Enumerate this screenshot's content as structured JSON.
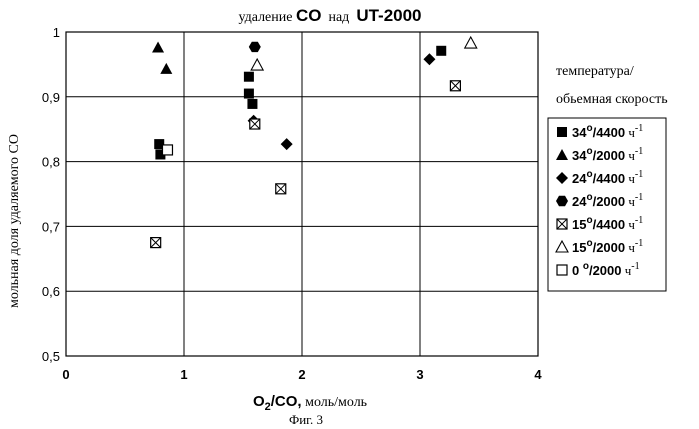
{
  "chart_data": {
    "type": "scatter",
    "title_parts": [
      {
        "text": "удаление ",
        "style": "serif"
      },
      {
        "text": "CO",
        "style": "sans-bold"
      },
      {
        "text": "  над  ",
        "style": "serif"
      },
      {
        "text": "UT-2000",
        "style": "sans-bold"
      }
    ],
    "ylabel": "мольная доля удаляемого CO",
    "xlabel": {
      "main": "O",
      "sub": "2",
      "rest": "/CO,",
      "unit": " моль/моль"
    },
    "caption": "Фиг. 3",
    "xlim": [
      0,
      4
    ],
    "ylim": [
      0.5,
      1.0
    ],
    "xticks": [
      "0",
      "1",
      "2",
      "3",
      "4"
    ],
    "yticks": [
      "0,5",
      "0,6",
      "0,7",
      "0,8",
      "0,9",
      "1"
    ],
    "xtick_values": [
      0,
      1,
      2,
      3,
      4
    ],
    "ytick_values": [
      0.5,
      0.6,
      0.7,
      0.8,
      0.9,
      1.0
    ],
    "grid": true,
    "legend_title": [
      "температура/",
      "обьемная скорость"
    ],
    "legend_position": "right",
    "series": [
      {
        "name": "34°/4400 ч-1",
        "label": {
          "a": "34",
          "deg": "o",
          "b": "/4400",
          "unit": "ч",
          "exp": "-1"
        },
        "marker": "square-filled",
        "points": [
          [
            0.79,
            0.827
          ],
          [
            0.8,
            0.811
          ],
          [
            1.55,
            0.931
          ],
          [
            1.55,
            0.905
          ],
          [
            1.58,
            0.889
          ],
          [
            3.18,
            0.971
          ]
        ]
      },
      {
        "name": "34°/2000 ч-1",
        "label": {
          "a": "34",
          "deg": "o",
          "b": "/2000",
          "unit": "ч",
          "exp": "-1"
        },
        "marker": "triangle-filled",
        "points": [
          [
            0.78,
            0.976
          ],
          [
            0.85,
            0.943
          ]
        ]
      },
      {
        "name": "24°/4400 ч-1",
        "label": {
          "a": "24",
          "deg": "o",
          "b": "/4400",
          "unit": "ч",
          "exp": "-1"
        },
        "marker": "diamond-filled",
        "points": [
          [
            1.59,
            0.863
          ],
          [
            1.87,
            0.827
          ],
          [
            3.08,
            0.958
          ]
        ]
      },
      {
        "name": "24°/2000 ч-1",
        "label": {
          "a": "24",
          "deg": "o",
          "b": "/2000",
          "unit": "ч",
          "exp": "-1"
        },
        "marker": "hexagon-filled",
        "points": [
          [
            1.6,
            0.977
          ]
        ]
      },
      {
        "name": "15°/4400 ч-1",
        "label": {
          "a": "15",
          "deg": "o",
          "b": "/4400",
          "unit": "ч",
          "exp": "-1"
        },
        "marker": "square-x",
        "points": [
          [
            0.76,
            0.675
          ],
          [
            1.6,
            0.858
          ],
          [
            1.82,
            0.758
          ],
          [
            3.3,
            0.917
          ]
        ]
      },
      {
        "name": "15°/2000 ч-1",
        "label": {
          "a": "15",
          "deg": "o",
          "b": "/2000",
          "unit": "ч",
          "exp": "-1"
        },
        "marker": "triangle-open",
        "points": [
          [
            1.62,
            0.949
          ],
          [
            3.43,
            0.983
          ]
        ]
      },
      {
        "name": "0°/2000 ч-1",
        "label": {
          "a": "0 ",
          "deg": "o",
          "b": "/2000",
          "unit": "ч",
          "exp": "-1"
        },
        "marker": "square-open",
        "points": [
          [
            0.86,
            0.818
          ]
        ]
      }
    ]
  }
}
